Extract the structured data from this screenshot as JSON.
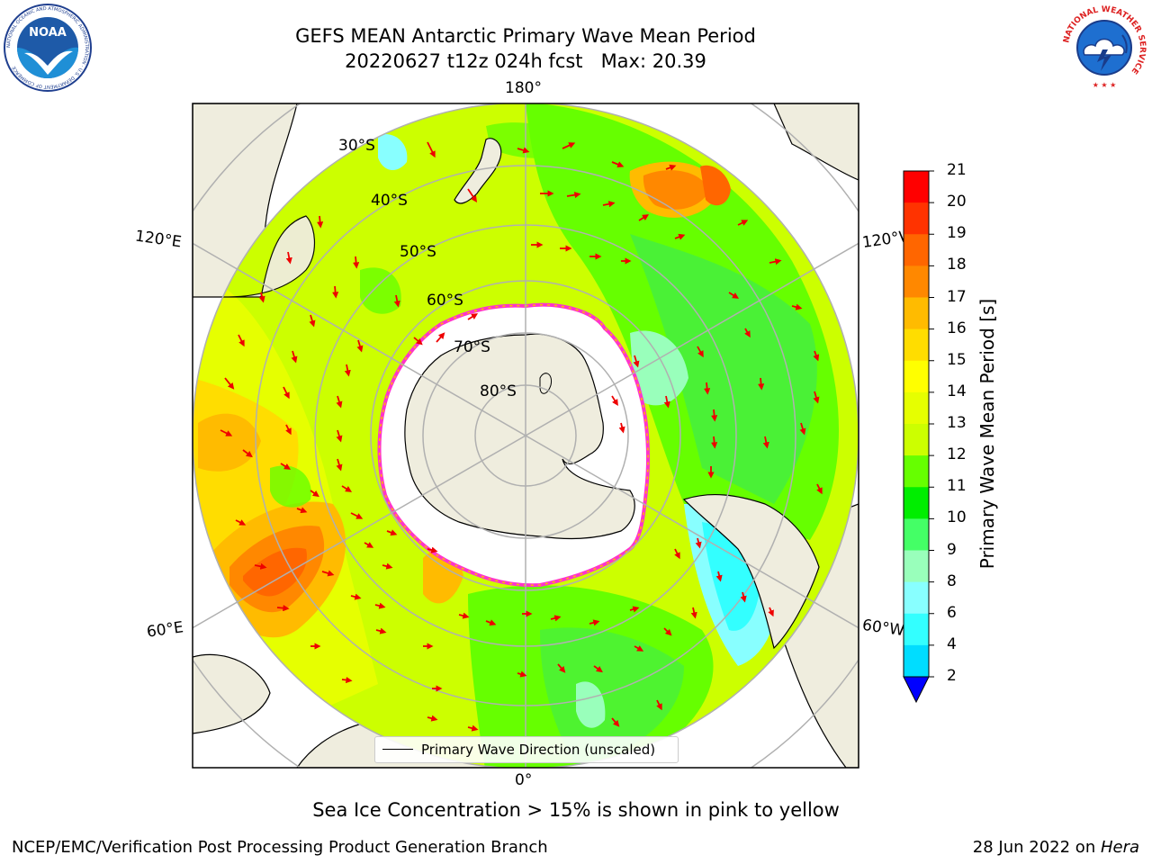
{
  "header": {
    "title_line1": "GEFS MEAN Antarctic Primary Wave Mean Period",
    "title_line2": "20220627 t12z 024h fcst   Max: 20.39"
  },
  "logos": {
    "noaa_text": "NOAA",
    "noaa_ring_text": "NATIONAL OCEANIC AND ATMOSPHERIC ADMINISTRATION · U.S. DEPARTMENT OF COMMERCE",
    "nws_ring_text": "NATIONAL WEATHER SERVICE"
  },
  "map": {
    "projection": "south-polar-stereographic",
    "lon_labels": {
      "top": "180°",
      "bottom": "0°",
      "upper_left": "120°E",
      "upper_right": "120°W",
      "lower_left": "60°E",
      "lower_right": "60°W"
    },
    "lat_labels": [
      "30°S",
      "40°S",
      "50°S",
      "60°S",
      "70°S",
      "80°S"
    ],
    "legend_label": "Primary Wave Direction (unscaled)",
    "colors": {
      "land": "#efedde",
      "sea_ice": "#ffffff",
      "ice_edge": "#ff33cc",
      "arrows": "#ee0000",
      "grid": "#b0b0b0"
    }
  },
  "colorbar": {
    "label": "Primary Wave Mean Period [s]",
    "ticks": [
      "21",
      "20",
      "19",
      "18",
      "17",
      "16",
      "15",
      "14",
      "13",
      "12",
      "11",
      "10",
      "9",
      "8",
      "6",
      "4",
      "2"
    ],
    "colors": [
      "#ff0000",
      "#ff3300",
      "#ff6600",
      "#ff8800",
      "#ffbb00",
      "#ffdd00",
      "#ffff00",
      "#e6ff00",
      "#ccff00",
      "#66ff00",
      "#00ee00",
      "#44ff66",
      "#99ffbb",
      "#88ffff",
      "#33ffff",
      "#00ddff",
      "#0088ff"
    ],
    "extend_color": "#0000ff"
  },
  "caption": "Sea Ice Concentration > 15% is shown in pink to yellow",
  "footer": {
    "left": "NCEP/EMC/Verification Post Processing Product Generation Branch",
    "right_date": "28 Jun 2022 on ",
    "right_host": "Hera"
  }
}
